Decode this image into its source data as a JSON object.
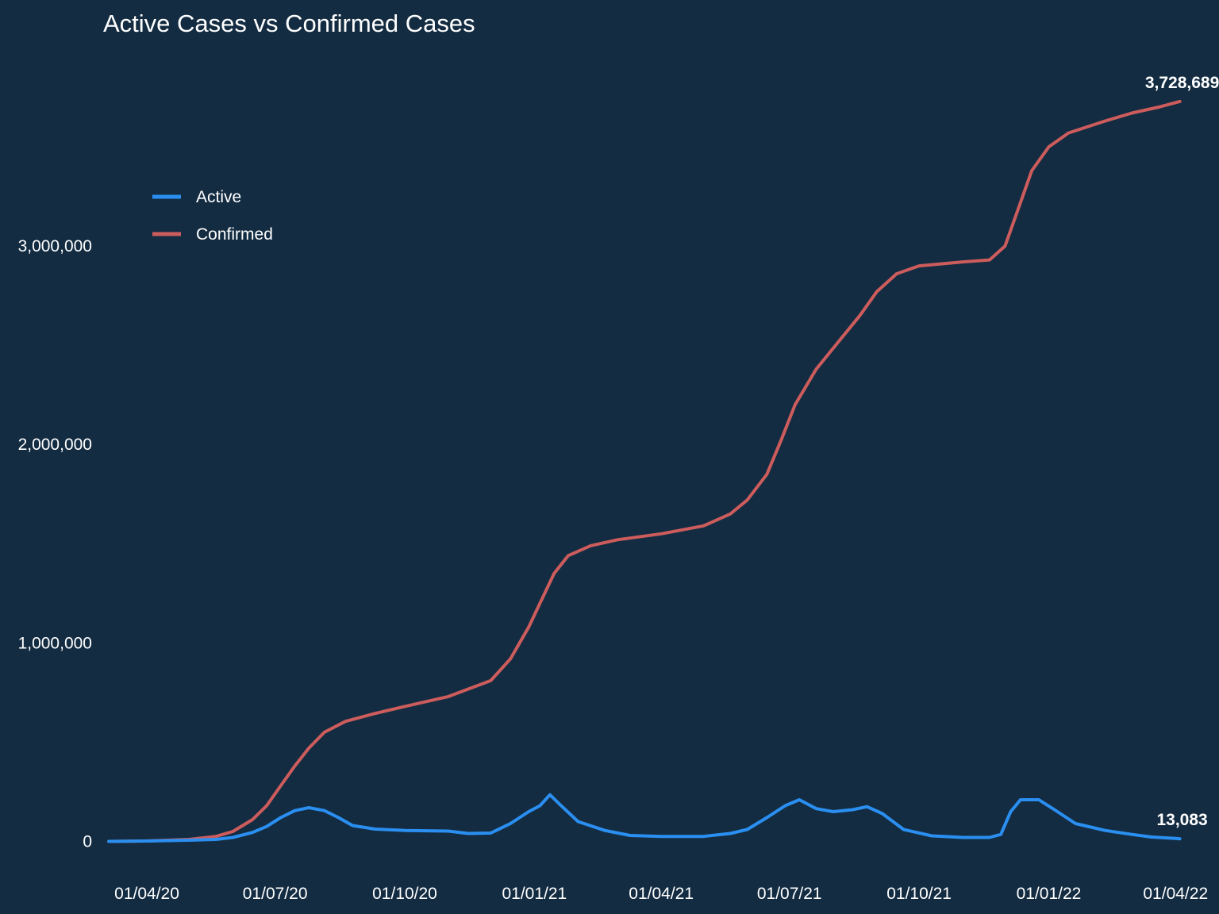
{
  "chart_data": {
    "type": "line",
    "title": "Active Cases vs Confirmed Cases",
    "xlabel": "",
    "ylabel": "",
    "legend_position": "top-left",
    "grid": false,
    "xlim": [
      "2020-03-01",
      "2022-04-20"
    ],
    "ylim": [
      -150000,
      4000000
    ],
    "x_ticks": [
      "2020-04-01",
      "2020-07-01",
      "2020-10-01",
      "2021-01-01",
      "2021-04-01",
      "2021-07-01",
      "2021-10-01",
      "2022-01-01",
      "2022-04-01"
    ],
    "x_tick_labels": [
      "01/04/20",
      "01/07/20",
      "01/10/20",
      "01/01/21",
      "01/04/21",
      "01/07/21",
      "01/10/21",
      "01/01/22",
      "01/04/22"
    ],
    "y_ticks": [
      0,
      1000000,
      2000000,
      3000000
    ],
    "y_tick_labels": [
      "0",
      "1,000,000",
      "2,000,000",
      "3,000,000"
    ],
    "series": [
      {
        "name": "Active",
        "color": "#2a8ff0",
        "end_label": "13,083",
        "points": [
          [
            "2020-03-05",
            0
          ],
          [
            "2020-04-01",
            2000
          ],
          [
            "2020-05-01",
            6000
          ],
          [
            "2020-05-20",
            10000
          ],
          [
            "2020-06-01",
            20000
          ],
          [
            "2020-06-15",
            45000
          ],
          [
            "2020-06-25",
            75000
          ],
          [
            "2020-07-05",
            120000
          ],
          [
            "2020-07-15",
            155000
          ],
          [
            "2020-07-25",
            170000
          ],
          [
            "2020-08-05",
            155000
          ],
          [
            "2020-08-15",
            120000
          ],
          [
            "2020-08-25",
            80000
          ],
          [
            "2020-09-10",
            62000
          ],
          [
            "2020-10-01",
            55000
          ],
          [
            "2020-11-01",
            52000
          ],
          [
            "2020-11-15",
            40000
          ],
          [
            "2020-12-01",
            42000
          ],
          [
            "2020-12-15",
            90000
          ],
          [
            "2020-12-28",
            150000
          ],
          [
            "2021-01-05",
            180000
          ],
          [
            "2021-01-12",
            235000
          ],
          [
            "2021-01-20",
            180000
          ],
          [
            "2021-02-01",
            100000
          ],
          [
            "2021-02-20",
            55000
          ],
          [
            "2021-03-10",
            30000
          ],
          [
            "2021-04-01",
            25000
          ],
          [
            "2021-05-01",
            25000
          ],
          [
            "2021-05-20",
            40000
          ],
          [
            "2021-06-01",
            60000
          ],
          [
            "2021-06-15",
            120000
          ],
          [
            "2021-06-28",
            180000
          ],
          [
            "2021-07-08",
            210000
          ],
          [
            "2021-07-20",
            165000
          ],
          [
            "2021-08-01",
            150000
          ],
          [
            "2021-08-15",
            160000
          ],
          [
            "2021-08-25",
            175000
          ],
          [
            "2021-09-05",
            140000
          ],
          [
            "2021-09-20",
            60000
          ],
          [
            "2021-10-10",
            28000
          ],
          [
            "2021-11-01",
            20000
          ],
          [
            "2021-11-20",
            20000
          ],
          [
            "2021-11-28",
            35000
          ],
          [
            "2021-12-05",
            150000
          ],
          [
            "2021-12-12",
            210000
          ],
          [
            "2021-12-25",
            210000
          ],
          [
            "2022-01-05",
            160000
          ],
          [
            "2022-01-20",
            90000
          ],
          [
            "2022-02-10",
            55000
          ],
          [
            "2022-03-01",
            35000
          ],
          [
            "2022-03-15",
            22000
          ],
          [
            "2022-04-01",
            15000
          ],
          [
            "2022-04-04",
            13083
          ]
        ]
      },
      {
        "name": "Confirmed",
        "color": "#cd5c5c",
        "end_label": "3,728,689",
        "points": [
          [
            "2020-03-05",
            0
          ],
          [
            "2020-04-01",
            2000
          ],
          [
            "2020-05-01",
            10000
          ],
          [
            "2020-05-20",
            25000
          ],
          [
            "2020-06-01",
            50000
          ],
          [
            "2020-06-15",
            110000
          ],
          [
            "2020-06-25",
            180000
          ],
          [
            "2020-07-05",
            280000
          ],
          [
            "2020-07-15",
            380000
          ],
          [
            "2020-07-25",
            470000
          ],
          [
            "2020-08-05",
            550000
          ],
          [
            "2020-08-20",
            605000
          ],
          [
            "2020-09-10",
            645000
          ],
          [
            "2020-10-01",
            680000
          ],
          [
            "2020-11-01",
            730000
          ],
          [
            "2020-12-01",
            810000
          ],
          [
            "2020-12-15",
            920000
          ],
          [
            "2020-12-28",
            1080000
          ],
          [
            "2021-01-05",
            1200000
          ],
          [
            "2021-01-15",
            1350000
          ],
          [
            "2021-01-25",
            1440000
          ],
          [
            "2021-02-10",
            1490000
          ],
          [
            "2021-03-01",
            1520000
          ],
          [
            "2021-04-01",
            1550000
          ],
          [
            "2021-05-01",
            1590000
          ],
          [
            "2021-05-20",
            1650000
          ],
          [
            "2021-06-01",
            1720000
          ],
          [
            "2021-06-15",
            1850000
          ],
          [
            "2021-06-25",
            2020000
          ],
          [
            "2021-07-05",
            2200000
          ],
          [
            "2021-07-20",
            2380000
          ],
          [
            "2021-08-05",
            2520000
          ],
          [
            "2021-08-20",
            2650000
          ],
          [
            "2021-09-01",
            2770000
          ],
          [
            "2021-09-15",
            2860000
          ],
          [
            "2021-10-01",
            2900000
          ],
          [
            "2021-11-01",
            2920000
          ],
          [
            "2021-11-20",
            2930000
          ],
          [
            "2021-12-01",
            3000000
          ],
          [
            "2021-12-10",
            3180000
          ],
          [
            "2021-12-20",
            3380000
          ],
          [
            "2022-01-01",
            3500000
          ],
          [
            "2022-01-15",
            3570000
          ],
          [
            "2022-02-10",
            3630000
          ],
          [
            "2022-03-01",
            3670000
          ],
          [
            "2022-03-20",
            3700000
          ],
          [
            "2022-04-04",
            3728689
          ]
        ]
      }
    ]
  }
}
